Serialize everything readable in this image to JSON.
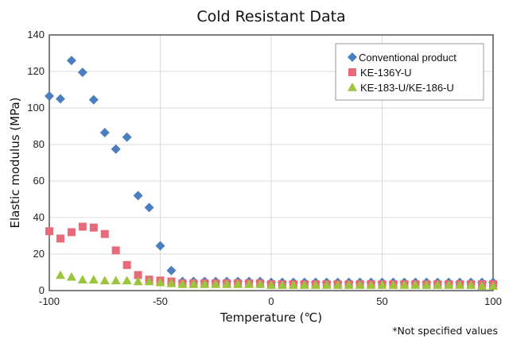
{
  "chart_data": {
    "type": "scatter",
    "title": "Cold Resistant Data",
    "xlabel": "Temperature (℃)",
    "ylabel": "Elastic modulus (MPa)",
    "xlim": [
      -100,
      100
    ],
    "ylim": [
      0,
      140
    ],
    "xticks": [
      -100,
      -50,
      0,
      50,
      100
    ],
    "xtick_labels": [
      "-100",
      "-50",
      "0",
      "50",
      "100"
    ],
    "yticks": [
      0,
      20,
      40,
      60,
      80,
      100,
      120,
      140
    ],
    "ytick_labels": [
      "0",
      "20",
      "40",
      "60",
      "80",
      "100",
      "120",
      "140"
    ],
    "grid": true,
    "legend_position": "top-right",
    "note": "*Not specified values",
    "series": [
      {
        "name": "Conventional product",
        "marker": "diamond",
        "color": "#4a7ebf",
        "points": [
          [
            -100,
            106.5
          ],
          [
            -95,
            105
          ],
          [
            -90,
            126
          ],
          [
            -85,
            119.5
          ],
          [
            -80,
            104.5
          ],
          [
            -75,
            86.5
          ],
          [
            -70,
            77.5
          ],
          [
            -65,
            84
          ],
          [
            -60,
            52
          ],
          [
            -55,
            45.5
          ],
          [
            -50,
            24.5
          ],
          [
            -45,
            11
          ],
          [
            -40,
            5
          ],
          [
            -35,
            5
          ],
          [
            -30,
            5
          ],
          [
            -25,
            5
          ],
          [
            -20,
            5
          ],
          [
            -15,
            5
          ],
          [
            -10,
            5
          ],
          [
            -5,
            5
          ],
          [
            0,
            4.5
          ],
          [
            5,
            4.5
          ],
          [
            10,
            4.5
          ],
          [
            15,
            4.5
          ],
          [
            20,
            4.5
          ],
          [
            25,
            4.5
          ],
          [
            30,
            4.5
          ],
          [
            35,
            4.5
          ],
          [
            40,
            4.5
          ],
          [
            45,
            4.5
          ],
          [
            50,
            4.5
          ],
          [
            55,
            4.5
          ],
          [
            60,
            4.5
          ],
          [
            65,
            4.5
          ],
          [
            70,
            4.5
          ],
          [
            75,
            4.5
          ],
          [
            80,
            4.5
          ],
          [
            85,
            4.5
          ],
          [
            90,
            4.5
          ],
          [
            95,
            4.5
          ],
          [
            100,
            4.5
          ]
        ]
      },
      {
        "name": "KE-136Y-U",
        "marker": "square",
        "color": "#e8697a",
        "points": [
          [
            -100,
            32.5
          ],
          [
            -95,
            28.5
          ],
          [
            -90,
            32
          ],
          [
            -85,
            35
          ],
          [
            -80,
            34.5
          ],
          [
            -75,
            31
          ],
          [
            -70,
            22
          ],
          [
            -65,
            14
          ],
          [
            -60,
            8.5
          ],
          [
            -55,
            6
          ],
          [
            -50,
            5.5
          ],
          [
            -45,
            5
          ],
          [
            -40,
            4
          ],
          [
            -35,
            4
          ],
          [
            -30,
            4
          ],
          [
            -25,
            4
          ],
          [
            -20,
            4
          ],
          [
            -15,
            4
          ],
          [
            -10,
            4
          ],
          [
            -5,
            4
          ],
          [
            0,
            3.5
          ],
          [
            5,
            3.5
          ],
          [
            10,
            3.5
          ],
          [
            15,
            3.5
          ],
          [
            20,
            3.5
          ],
          [
            25,
            3.5
          ],
          [
            30,
            3.5
          ],
          [
            35,
            3.5
          ],
          [
            40,
            3.5
          ],
          [
            45,
            3.5
          ],
          [
            50,
            3.5
          ],
          [
            55,
            3.5
          ],
          [
            60,
            3.5
          ],
          [
            65,
            3.5
          ],
          [
            70,
            3.5
          ],
          [
            75,
            3.5
          ],
          [
            80,
            3.5
          ],
          [
            85,
            3.5
          ],
          [
            90,
            3.5
          ],
          [
            95,
            3.5
          ],
          [
            100,
            3.5
          ]
        ]
      },
      {
        "name": "KE-183-U/KE-186-U",
        "marker": "triangle",
        "color": "#9cc43c",
        "points": [
          [
            -95,
            8.5
          ],
          [
            -90,
            7.5
          ],
          [
            -85,
            6
          ],
          [
            -80,
            6
          ],
          [
            -75,
            5.5
          ],
          [
            -70,
            5.5
          ],
          [
            -65,
            5.5
          ],
          [
            -60,
            5
          ],
          [
            -55,
            5
          ],
          [
            -50,
            4.5
          ],
          [
            -45,
            4
          ],
          [
            -40,
            3.5
          ],
          [
            -35,
            3.5
          ],
          [
            -30,
            3.5
          ],
          [
            -25,
            3.5
          ],
          [
            -20,
            3.5
          ],
          [
            -15,
            3.5
          ],
          [
            -10,
            3.5
          ],
          [
            -5,
            3.5
          ],
          [
            0,
            3
          ],
          [
            5,
            3
          ],
          [
            10,
            3
          ],
          [
            15,
            3
          ],
          [
            20,
            3
          ],
          [
            25,
            3
          ],
          [
            30,
            3
          ],
          [
            35,
            3
          ],
          [
            40,
            3
          ],
          [
            45,
            3
          ],
          [
            50,
            3
          ],
          [
            55,
            3
          ],
          [
            60,
            3
          ],
          [
            65,
            3
          ],
          [
            70,
            3
          ],
          [
            75,
            3
          ],
          [
            80,
            3
          ],
          [
            85,
            3
          ],
          [
            90,
            3
          ],
          [
            95,
            2.5
          ],
          [
            100,
            2.5
          ]
        ]
      }
    ]
  }
}
